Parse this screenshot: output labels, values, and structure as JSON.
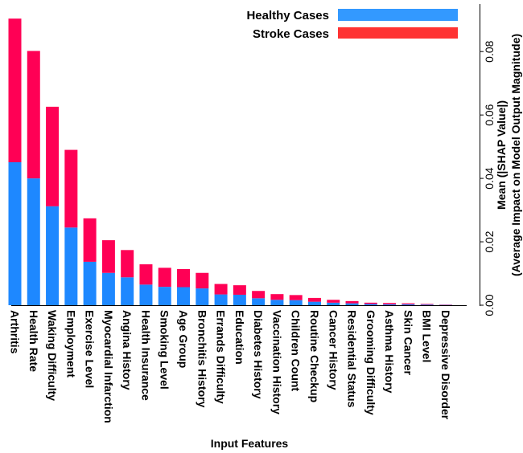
{
  "chart_data": {
    "type": "bar",
    "stacked": true,
    "title": "",
    "xlabel": "Input Features",
    "ylabel_line1": "Mean (|SHAP Value|)",
    "ylabel_line2": "(Average Impact on Model Output Magnitude)",
    "y_axis_side": "right",
    "ylim": [
      0,
      0.095
    ],
    "yticks": [
      0.0,
      0.02,
      0.04,
      0.06,
      0.08
    ],
    "ytick_labels": [
      "0.00",
      "0.02",
      "0.04",
      "0.06",
      "0.08"
    ],
    "grid": false,
    "legend_position": "top-right",
    "categories": [
      "Arthritis",
      "Health Rate",
      "Waking Difficulty",
      "Employment",
      "Exercise Level",
      "Myocardial Infarction",
      "Angina History",
      "Health Insurance",
      "Smoking Level",
      "Age Group",
      "Bronchitis History",
      "Errands Difficulty",
      "Education",
      "Diabetes History",
      "Vaccination History",
      "Children Count",
      "Routine Checkup",
      "Cancer History",
      "Residential Status",
      "Grooming Difficulty",
      "Asthma History",
      "Skin Cancer",
      "BMI Level",
      "Depressive Disorder"
    ],
    "series": [
      {
        "name": "Healthy Cases",
        "color": "#1E88FF",
        "values": [
          0.0451,
          0.04,
          0.0312,
          0.0245,
          0.0137,
          0.0102,
          0.0088,
          0.0065,
          0.0058,
          0.0057,
          0.0053,
          0.0034,
          0.0033,
          0.0022,
          0.0017,
          0.0016,
          0.0011,
          0.0008,
          0.0006,
          0.0004,
          0.0003,
          0.0003,
          0.0002,
          0.0001
        ]
      },
      {
        "name": "Stroke Cases",
        "color": "#FF0055",
        "values": [
          0.0453,
          0.0402,
          0.0314,
          0.0245,
          0.0137,
          0.0103,
          0.0086,
          0.0064,
          0.006,
          0.0057,
          0.0049,
          0.0033,
          0.003,
          0.0023,
          0.0018,
          0.0016,
          0.0012,
          0.0009,
          0.0007,
          0.0004,
          0.0004,
          0.0003,
          0.0002,
          0.0001
        ]
      }
    ]
  },
  "legend": {
    "healthy_label": "Healthy Cases",
    "stroke_label": "Stroke Cases",
    "healthy_color": "#3399FF",
    "stroke_color": "#FF3333"
  }
}
